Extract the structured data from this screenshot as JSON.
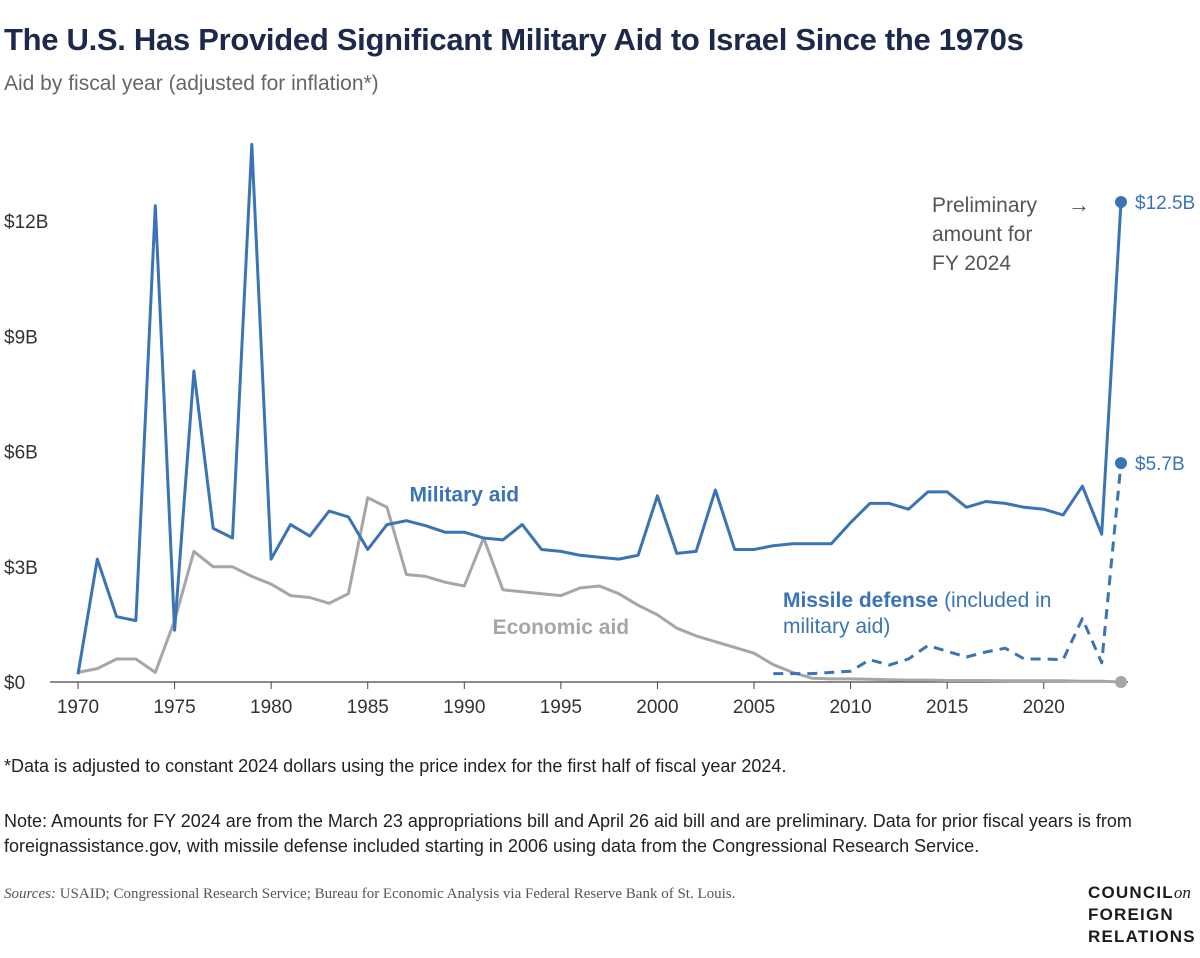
{
  "header": {
    "title": "The U.S. Has Provided Significant Military Aid to Israel Since the 1970s",
    "subtitle": "Aid by fiscal year (adjusted for inflation*)"
  },
  "chart_data": {
    "type": "line",
    "title": "The U.S. Has Provided Significant Military Aid to Israel Since the 1970s",
    "subtitle": "Aid by fiscal year (adjusted for inflation*)",
    "xlabel": "",
    "ylabel": "",
    "xlim": [
      1970,
      2024
    ],
    "ylim": [
      0,
      14
    ],
    "x_ticks": [
      1970,
      1975,
      1980,
      1985,
      1990,
      1995,
      2000,
      2005,
      2010,
      2015,
      2020
    ],
    "x_tick_labels": [
      "1970",
      "1975",
      "1980",
      "1985",
      "1990",
      "1995",
      "2000",
      "2005",
      "2010",
      "2015",
      "2020"
    ],
    "y_ticks": [
      0,
      3,
      6,
      9,
      12
    ],
    "y_tick_labels": [
      "$0",
      "$3B",
      "$6B",
      "$9B",
      "$12B"
    ],
    "grid": false,
    "colors": {
      "military": "#3a74b5",
      "economic": "#a6a6a6",
      "axis": "#444444",
      "annotation_text": "#555555"
    },
    "series": [
      {
        "name": "Military aid",
        "label_text": "Military aid",
        "label_position": [
          1990,
          4.7
        ],
        "style": "solid",
        "x": [
          1970,
          1971,
          1972,
          1973,
          1974,
          1975,
          1976,
          1977,
          1978,
          1979,
          1980,
          1981,
          1982,
          1983,
          1984,
          1985,
          1986,
          1987,
          1988,
          1989,
          1990,
          1991,
          1992,
          1993,
          1994,
          1995,
          1996,
          1997,
          1998,
          1999,
          2000,
          2001,
          2002,
          2003,
          2004,
          2005,
          2006,
          2007,
          2008,
          2009,
          2010,
          2011,
          2012,
          2013,
          2014,
          2015,
          2016,
          2017,
          2018,
          2019,
          2020,
          2021,
          2022,
          2023,
          2024
        ],
        "values": [
          0.2,
          3.2,
          1.7,
          1.6,
          12.4,
          1.35,
          8.1,
          4.0,
          3.75,
          14.0,
          3.2,
          4.1,
          3.8,
          4.45,
          4.3,
          3.45,
          4.1,
          4.2,
          4.07,
          3.9,
          3.9,
          3.75,
          3.7,
          4.1,
          3.45,
          3.4,
          3.3,
          3.25,
          3.2,
          3.3,
          4.85,
          3.35,
          3.4,
          5.0,
          3.45,
          3.45,
          3.55,
          3.6,
          3.6,
          3.6,
          4.15,
          4.65,
          4.65,
          4.5,
          4.95,
          4.95,
          4.55,
          4.7,
          4.65,
          4.55,
          4.5,
          4.35,
          5.1,
          3.85,
          12.5
        ],
        "end_label": "$12.5B"
      },
      {
        "name": "Economic aid",
        "label_text": "Economic aid",
        "label_position": [
          1995,
          1.25
        ],
        "style": "solid",
        "x": [
          1970,
          1971,
          1972,
          1973,
          1974,
          1975,
          1976,
          1977,
          1978,
          1979,
          1980,
          1981,
          1982,
          1983,
          1984,
          1985,
          1986,
          1987,
          1988,
          1989,
          1990,
          1991,
          1992,
          1993,
          1994,
          1995,
          1996,
          1997,
          1998,
          1999,
          2000,
          2001,
          2002,
          2003,
          2004,
          2005,
          2006,
          2007,
          2008,
          2009,
          2010,
          2011,
          2012,
          2013,
          2014,
          2015,
          2016,
          2017,
          2018,
          2019,
          2020,
          2021,
          2022,
          2023,
          2024
        ],
        "values": [
          0.25,
          0.35,
          0.6,
          0.6,
          0.25,
          1.6,
          3.4,
          3.0,
          3.0,
          2.75,
          2.55,
          2.25,
          2.2,
          2.05,
          2.3,
          4.8,
          4.55,
          2.8,
          2.75,
          2.6,
          2.5,
          3.75,
          2.4,
          2.35,
          2.3,
          2.25,
          2.45,
          2.5,
          2.3,
          2.0,
          1.75,
          1.4,
          1.2,
          1.05,
          0.9,
          0.75,
          0.45,
          0.25,
          0.1,
          0.08,
          0.08,
          0.07,
          0.06,
          0.05,
          0.05,
          0.04,
          0.04,
          0.04,
          0.03,
          0.03,
          0.03,
          0.03,
          0.02,
          0.02,
          0.0
        ],
        "end_marker": true
      },
      {
        "name": "Missile defense (included in military aid)",
        "label_text": "Missile defense",
        "label_suffix": "(included in",
        "label_line2": "military aid)",
        "label_position": [
          2006.5,
          1.95
        ],
        "style": "dashed",
        "x": [
          2006,
          2007,
          2008,
          2009,
          2010,
          2011,
          2012,
          2013,
          2014,
          2015,
          2016,
          2017,
          2018,
          2019,
          2020,
          2021,
          2022,
          2023,
          2024
        ],
        "values": [
          0.22,
          0.22,
          0.22,
          0.25,
          0.28,
          0.58,
          0.44,
          0.6,
          0.95,
          0.8,
          0.65,
          0.78,
          0.88,
          0.6,
          0.6,
          0.58,
          1.65,
          0.5,
          5.7
        ],
        "end_label": "$5.7B"
      }
    ],
    "annotations": [
      {
        "text_lines": [
          "Preliminary",
          "amount for",
          "FY 2024"
        ],
        "arrow": "→"
      }
    ]
  },
  "footer": {
    "footnote": "*Data is adjusted to constant 2024 dollars using the price index for the first half of fiscal year 2024.",
    "note": "Note: Amounts for FY 2024 are from the March 23 appropriations bill and April 26 aid bill and are preliminary. Data for prior fiscal years is from foreignassistance.gov, with missile defense included starting in 2006 using data from the Congressional Research Service.",
    "sources_label": "Sources:",
    "sources_text": " USAID; Congressional Research Service; Bureau for Economic Analysis via Federal Reserve Bank of St. Louis."
  },
  "logo": {
    "line1": "COUNCIL",
    "line1_suffix": "on",
    "line2": "FOREIGN",
    "line3": "RELATIONS"
  }
}
